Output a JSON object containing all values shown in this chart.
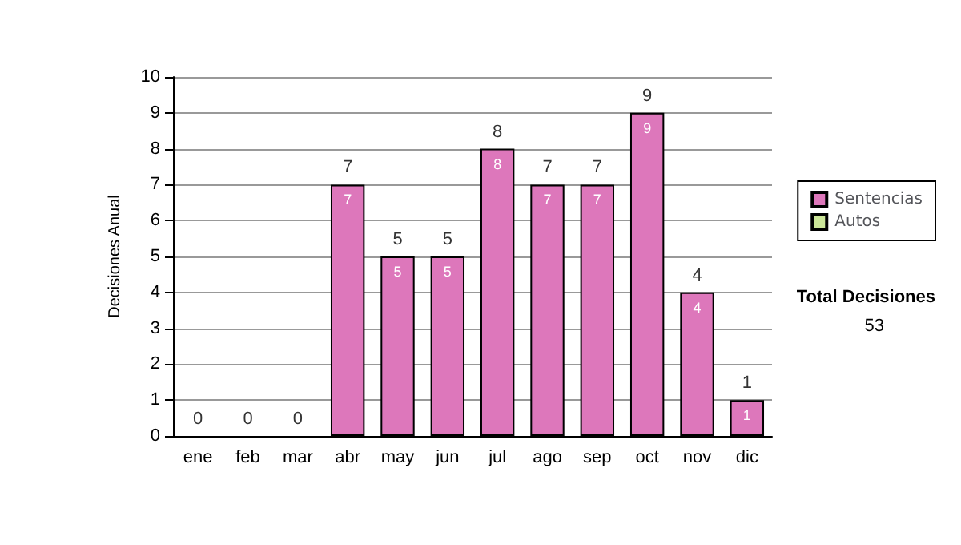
{
  "chart_data": {
    "type": "bar",
    "stacked": true,
    "ylabel": "Decisiones Anual",
    "categories": [
      "ene",
      "feb",
      "mar",
      "abr",
      "may",
      "jun",
      "jul",
      "ago",
      "sep",
      "oct",
      "nov",
      "dic"
    ],
    "series": [
      {
        "name": "Sentencias",
        "color": "#dd77bb",
        "values": [
          0,
          0,
          0,
          7,
          5,
          5,
          8,
          7,
          7,
          9,
          4,
          1
        ],
        "value_labels": [
          null,
          null,
          null,
          "7",
          "5",
          "5",
          "8",
          "7",
          "7",
          "9",
          "4",
          "1"
        ]
      },
      {
        "name": "Autos",
        "color": "#cce699",
        "values": [
          0,
          0,
          0,
          0,
          0,
          0,
          0,
          0,
          0,
          0,
          0,
          0
        ]
      }
    ],
    "totals": [
      "0",
      "0",
      "0",
      "7",
      "5",
      "5",
      "8",
      "7",
      "7",
      "9",
      "4",
      "1"
    ],
    "ylim": [
      0,
      10
    ],
    "yticks": [
      0,
      1,
      2,
      3,
      4,
      5,
      6,
      7,
      8,
      9,
      10
    ],
    "grid": "y",
    "legend": "right",
    "annotations": [
      "Total Decisiones",
      "53"
    ]
  }
}
